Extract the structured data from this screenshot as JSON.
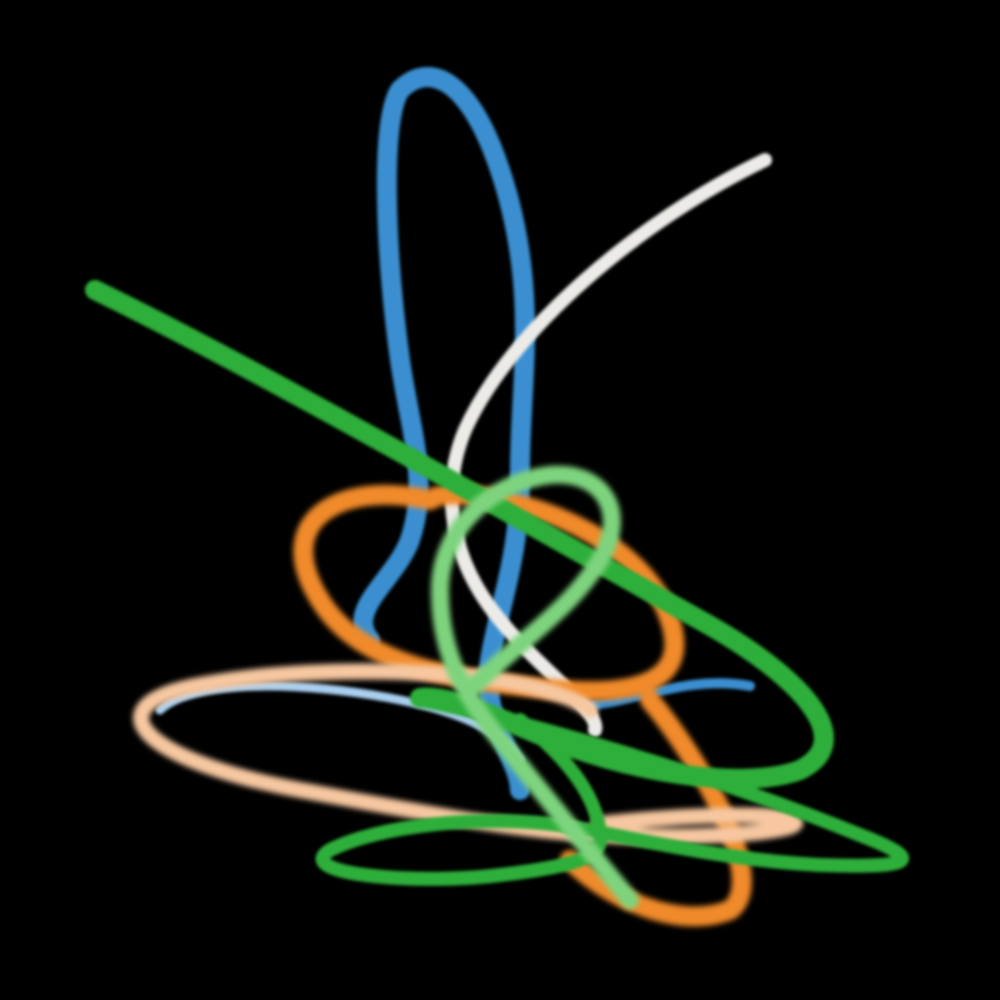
{
  "scene": {
    "background": "#000000",
    "ribbons": [
      {
        "name": "blue-ribbon",
        "color": "#3b8fd0"
      },
      {
        "name": "light-blue-ribbon",
        "color": "#a9cff0"
      },
      {
        "name": "white-ribbon",
        "color": "#ecebe8"
      },
      {
        "name": "orange-ribbon",
        "color": "#f08a2a"
      },
      {
        "name": "peach-ribbon",
        "color": "#f6c7a0"
      },
      {
        "name": "green-ribbon",
        "color": "#2fae3a"
      },
      {
        "name": "light-green-ribbon",
        "color": "#7ed47e"
      }
    ]
  }
}
